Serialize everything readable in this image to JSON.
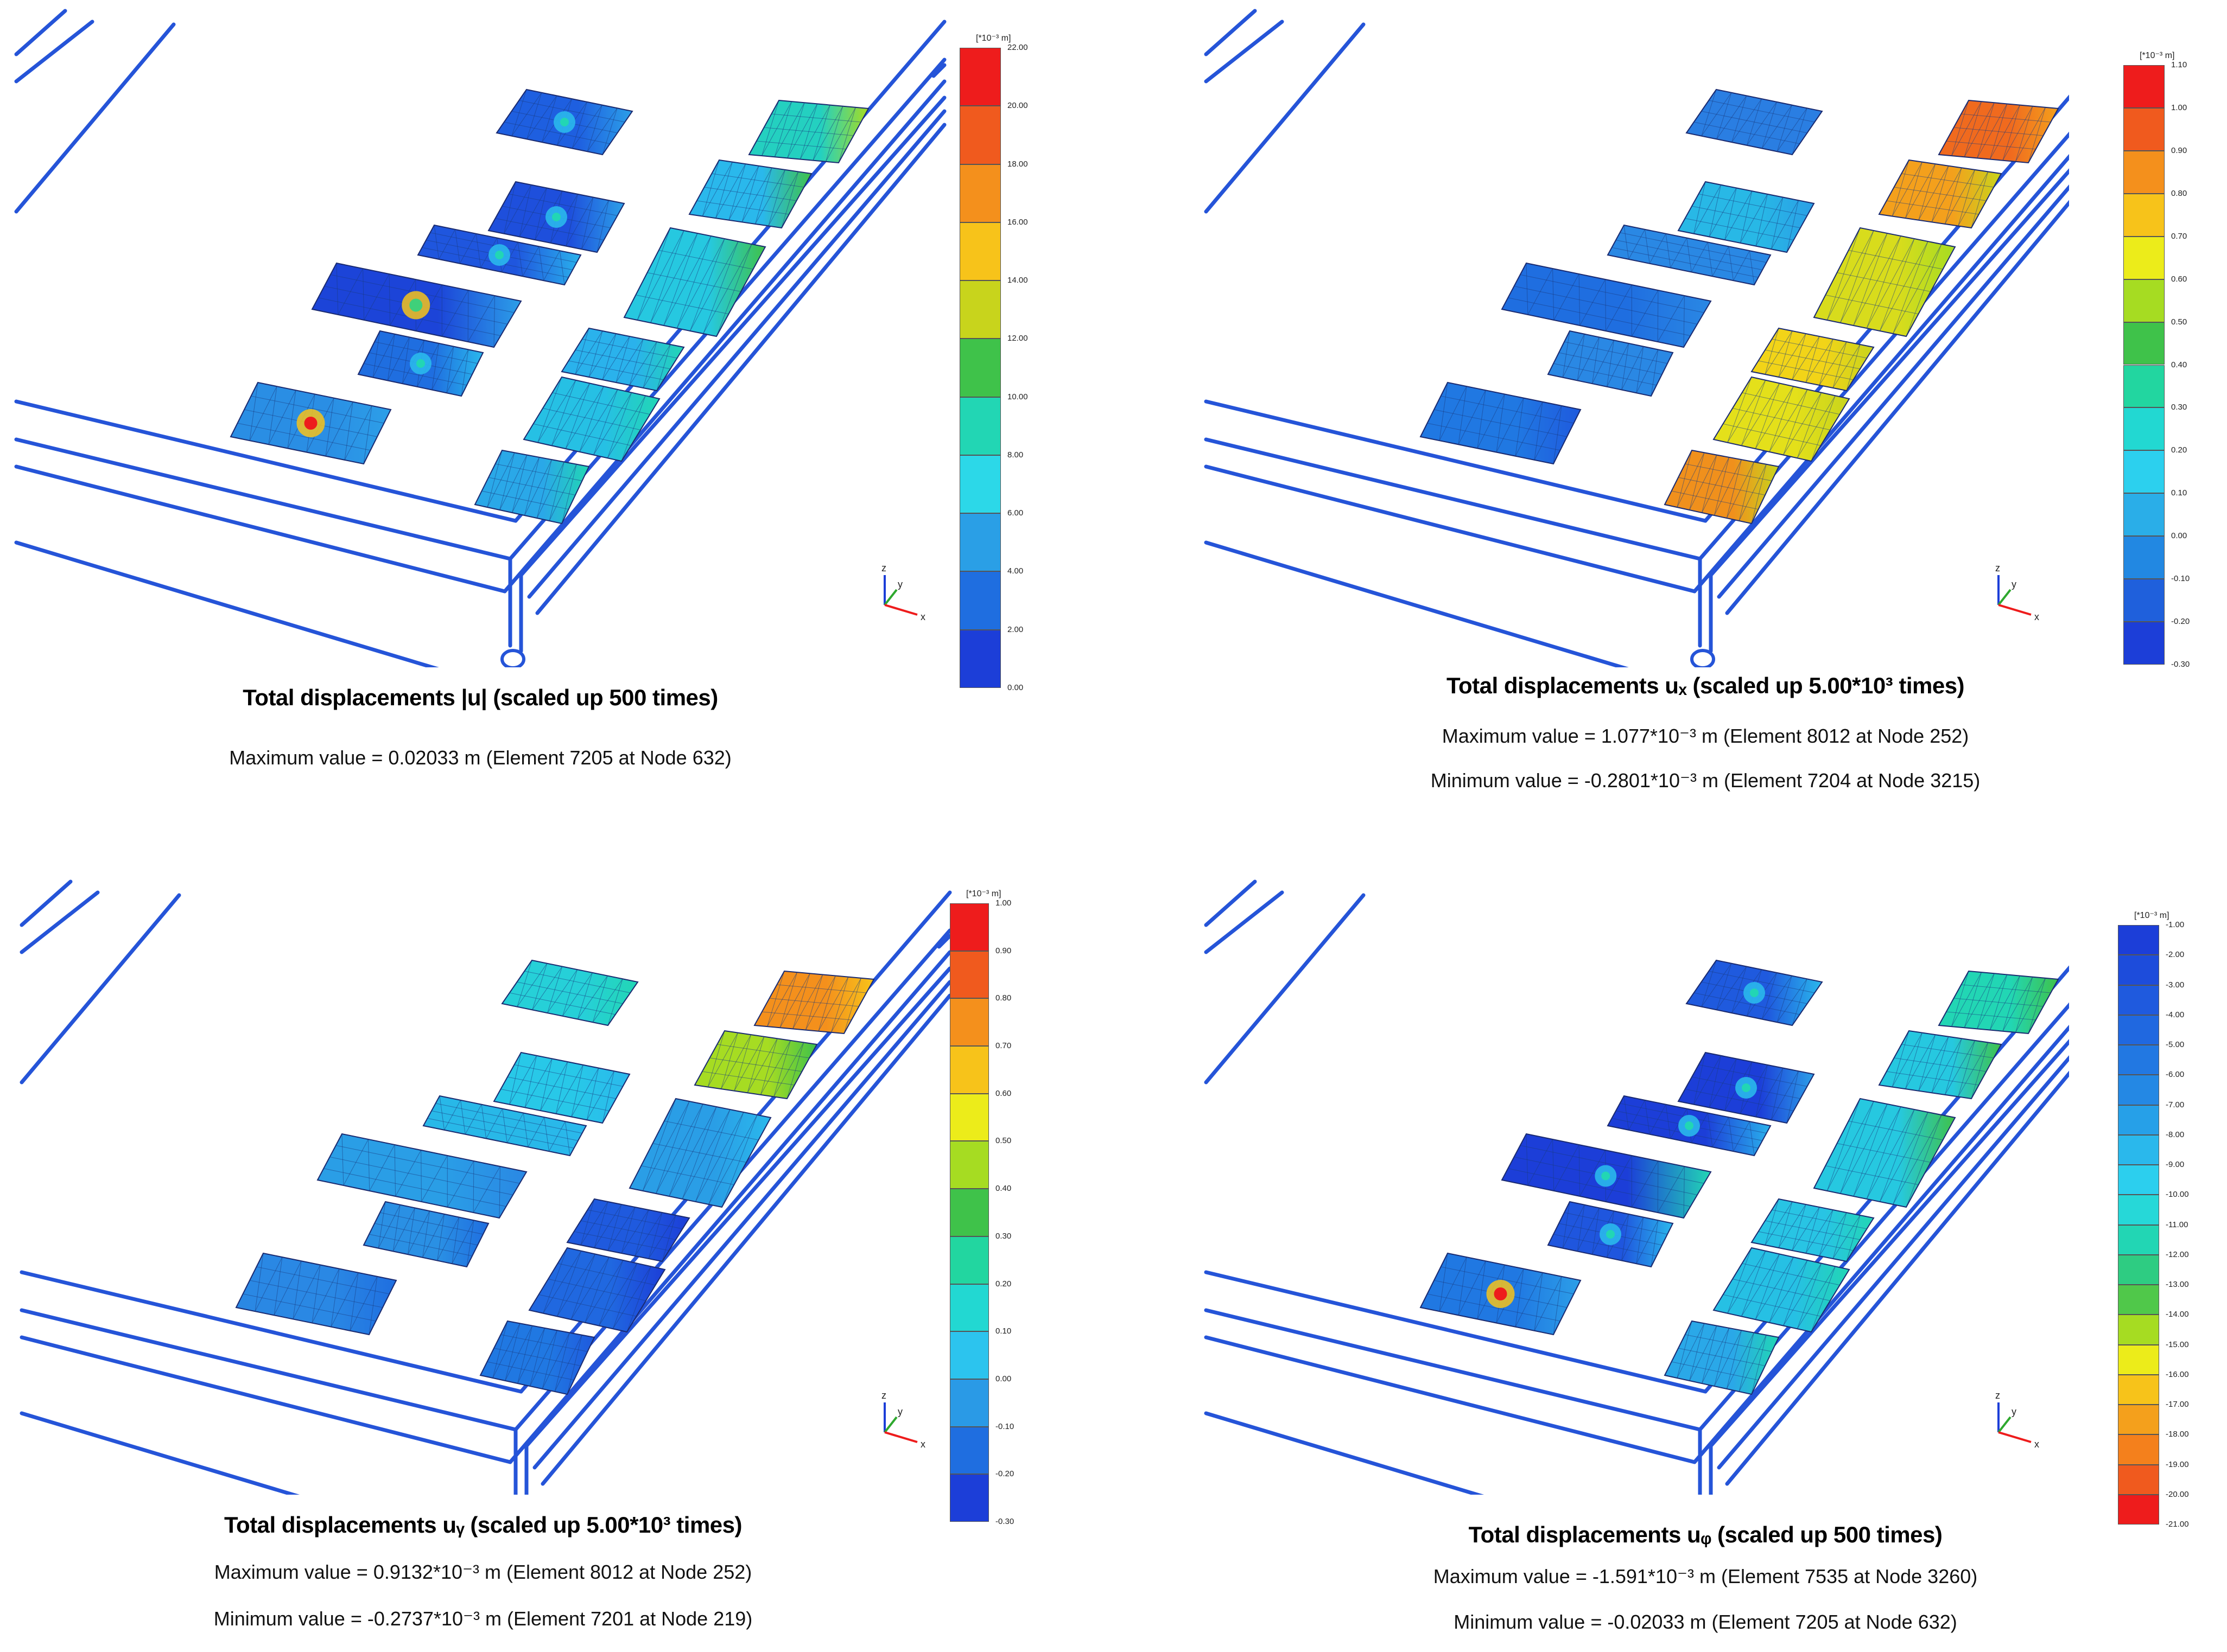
{
  "panels": [
    {
      "title": "Total displacements |u| (scaled up 500 times)",
      "max_text": "Maximum value = 0.02033 m (Element 7205 at Node 632)",
      "min_text": "",
      "legend": {
        "unit": "[*10⁻³ m]",
        "ticks": [
          "22.00",
          "20.00",
          "18.00",
          "16.00",
          "14.00",
          "12.00",
          "10.00",
          "8.00",
          "6.00",
          "4.00",
          "2.00",
          "0.00"
        ],
        "colors": [
          "#ee1c1c",
          "#f05a1e",
          "#f4901c",
          "#f7c31a",
          "#c8d41c",
          "#3fc24a",
          "#22d6b4",
          "#2cd8e8",
          "#2a9fe6",
          "#1f6ee0",
          "#1c3ed8"
        ]
      },
      "axes": {
        "z": "z",
        "y": "y",
        "x": "x"
      }
    },
    {
      "title": "Total displacements uₓ (scaled up 5.00*10³ times)",
      "max_text": "Maximum value = 1.077*10⁻³ m (Element 8012 at Node 252)",
      "min_text": "Minimum value = -0.2801*10⁻³ m (Element 7204 at Node 3215)",
      "legend": {
        "unit": "[*10⁻³ m]",
        "ticks": [
          "1.10",
          "1.00",
          "0.90",
          "0.80",
          "0.70",
          "0.60",
          "0.50",
          "0.40",
          "0.30",
          "0.20",
          "0.10",
          "0.00",
          "-0.10",
          "-0.20",
          "-0.30"
        ],
        "colors": [
          "#ee1c1c",
          "#f05a1e",
          "#f4901c",
          "#f7c31a",
          "#ecec1a",
          "#a6dc22",
          "#3fc24a",
          "#22d6a0",
          "#22d8d2",
          "#2cd0ee",
          "#2aaee8",
          "#2288e2",
          "#1f60dc",
          "#1c3ed8"
        ]
      },
      "axes": {
        "z": "z",
        "y": "y",
        "x": "x"
      }
    },
    {
      "title": "Total displacements uᵧ (scaled up 5.00*10³ times)",
      "max_text": "Maximum value = 0.9132*10⁻³ m (Element 8012 at Node 252)",
      "min_text": "Minimum value = -0.2737*10⁻³ m (Element 7201 at Node 219)",
      "legend": {
        "unit": "[*10⁻³ m]",
        "ticks": [
          "1.00",
          "0.90",
          "0.80",
          "0.70",
          "0.60",
          "0.50",
          "0.40",
          "0.30",
          "0.20",
          "0.10",
          "0.00",
          "-0.10",
          "-0.20",
          "-0.30"
        ],
        "colors": [
          "#ee1c1c",
          "#f05a1e",
          "#f4901c",
          "#f7c31a",
          "#ecec1a",
          "#a6dc22",
          "#3fc24a",
          "#22d6a0",
          "#22d8d2",
          "#2cc4ee",
          "#2a9ae6",
          "#1f6ee0",
          "#1c3ed8"
        ]
      },
      "axes": {
        "z": "z",
        "y": "y",
        "x": "x"
      }
    },
    {
      "title": "Total displacements uᵩ (scaled up 500 times)",
      "max_text": "Maximum value = -1.591*10⁻³ m (Element 7535 at Node 3260)",
      "min_text": "Minimum value = -0.02033 m (Element 7205 at Node 632)",
      "legend": {
        "unit": "[*10⁻³ m]",
        "ticks": [
          "-1.00",
          "-2.00",
          "-3.00",
          "-4.00",
          "-5.00",
          "-6.00",
          "-7.00",
          "-8.00",
          "-9.00",
          "-10.00",
          "-11.00",
          "-12.00",
          "-13.00",
          "-14.00",
          "-15.00",
          "-16.00",
          "-17.00",
          "-18.00",
          "-19.00",
          "-20.00",
          "-21.00"
        ],
        "colors": [
          "#1c3ed8",
          "#1d4cdb",
          "#1f5ade",
          "#2068e0",
          "#2278e2",
          "#2488e4",
          "#26a0e8",
          "#2ab8ec",
          "#2ccfee",
          "#26d8d8",
          "#22d6b4",
          "#2ecc82",
          "#50c84a",
          "#a6dc22",
          "#ecec1a",
          "#f7c31a",
          "#f4a01c",
          "#f4801c",
          "#f05a1e",
          "#ee1c1c"
        ]
      },
      "axes": {
        "z": "z",
        "y": "y",
        "x": "x"
      }
    }
  ]
}
